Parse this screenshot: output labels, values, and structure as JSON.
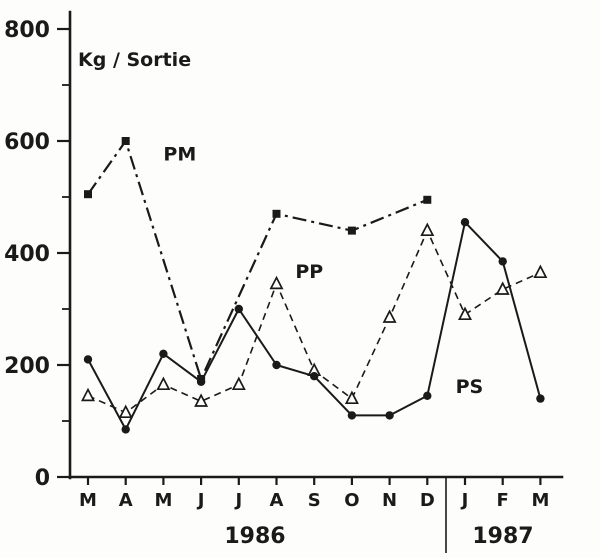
{
  "chart_data": {
    "type": "line",
    "ylabel": "Kg / Sortie",
    "color": "#1a1a1a",
    "ylim": [
      0,
      800
    ],
    "y_major_ticks": [
      0,
      200,
      400,
      600,
      800
    ],
    "y_minor_ticks": [
      100,
      300,
      500,
      700
    ],
    "x_tick_labels": [
      "M",
      "A",
      "M",
      "J",
      "J",
      "A",
      "S",
      "O",
      "N",
      "D",
      "J",
      "F",
      "M"
    ],
    "years": [
      "1986",
      "1987"
    ],
    "series": [
      {
        "name": "PM",
        "marker": "square",
        "line_style": "dashdot",
        "width": 2.2,
        "x": [
          0,
          1,
          3,
          5,
          7,
          9
        ],
        "values": [
          505,
          600,
          175,
          470,
          440,
          495
        ],
        "label_x": 2.0,
        "label_y": 565
      },
      {
        "name": "PP",
        "marker": "triangle",
        "line_style": "dashed",
        "width": 1.6,
        "x": [
          0,
          1,
          2,
          3,
          4,
          5,
          6,
          7,
          8,
          9,
          10,
          11,
          12
        ],
        "values": [
          145,
          115,
          165,
          135,
          165,
          345,
          190,
          140,
          285,
          440,
          290,
          335,
          365
        ],
        "label_x": 5.5,
        "label_y": 355
      },
      {
        "name": "PS",
        "marker": "circle",
        "line_style": "solid",
        "width": 2.0,
        "x": [
          0,
          1,
          2,
          3,
          4,
          5,
          6,
          7,
          8,
          9,
          10,
          11,
          12
        ],
        "values": [
          210,
          85,
          220,
          170,
          300,
          200,
          180,
          110,
          110,
          145,
          455,
          385,
          140
        ],
        "label_x": 9.75,
        "label_y": 150
      }
    ]
  }
}
